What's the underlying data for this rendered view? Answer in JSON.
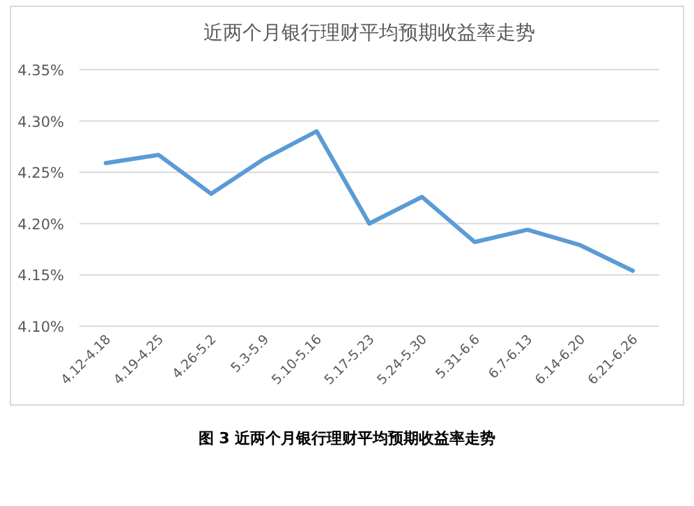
{
  "chart_data": {
    "type": "line",
    "title": "近两个月银行理财平均预期收益率走势",
    "categories": [
      "4.12-4.18",
      "4.19-4.25",
      "4.26-5.2",
      "5.3-5.9",
      "5.10-5.16",
      "5.17-5.23",
      "5.24-5.30",
      "5.31-6.6",
      "6.7-6.13",
      "6.14-6.20",
      "6.21-6.26"
    ],
    "series": [
      {
        "color": "#5b9bd5",
        "values": [
          4.259,
          4.267,
          4.229,
          4.263,
          4.29,
          4.2,
          4.226,
          4.182,
          4.194,
          4.179,
          4.154
        ]
      }
    ],
    "ylim": [
      4.1,
      4.35
    ],
    "yticks": [
      {
        "value": 4.1,
        "label": "4.10%"
      },
      {
        "value": 4.15,
        "label": "4.15%"
      },
      {
        "value": 4.2,
        "label": "4.20%"
      },
      {
        "value": 4.25,
        "label": "4.25%"
      },
      {
        "value": 4.3,
        "label": "4.30%"
      },
      {
        "value": 4.35,
        "label": "4.35%"
      }
    ],
    "grid": "y",
    "marker": "none",
    "line_style": "solid",
    "annotations": [
      "图 3 近两个月银行理财平均预期收益率走势"
    ]
  }
}
